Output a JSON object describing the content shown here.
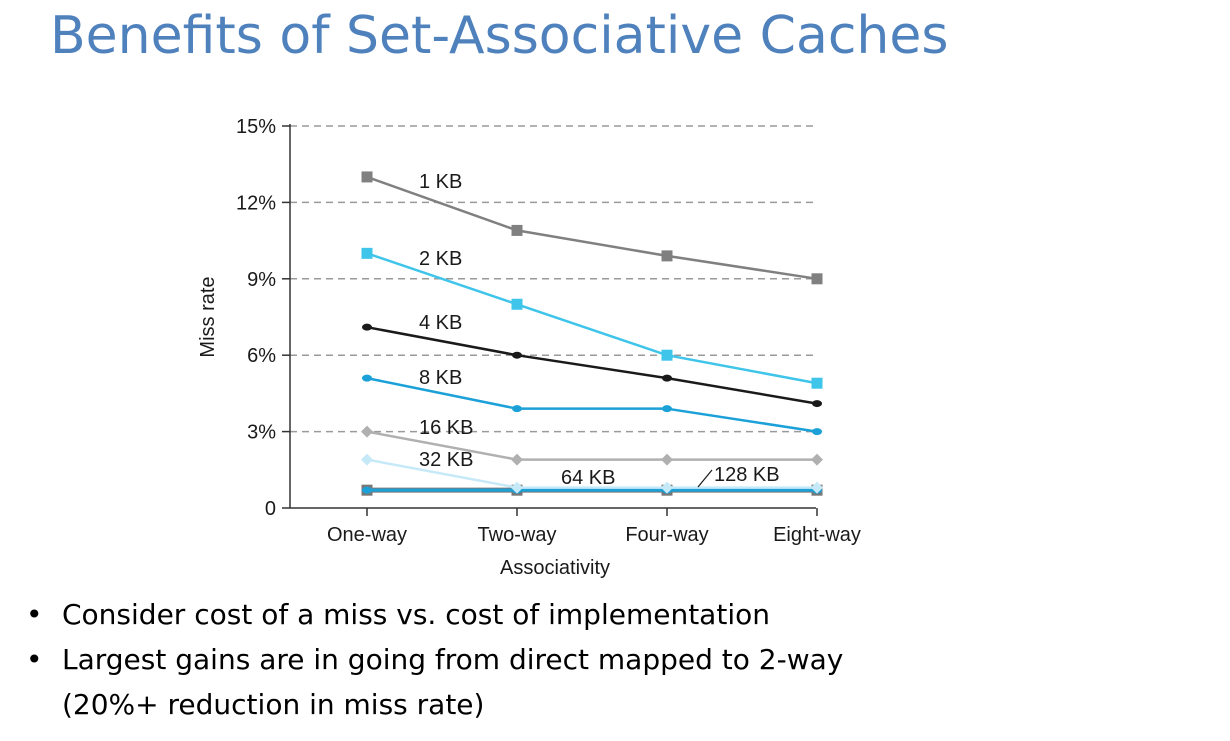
{
  "slide": {
    "title": "Benefits of Set-Associative Caches",
    "bullets": [
      {
        "lines": [
          "Consider cost of a miss vs. cost of implementation"
        ]
      },
      {
        "lines": [
          "Largest gains are in going from direct mapped to 2-way",
          "(20%+ reduction in miss rate)"
        ]
      }
    ],
    "bullet_glyph": "•"
  },
  "chart_data": {
    "type": "line",
    "title": "",
    "xlabel": "Associativity",
    "ylabel": "Miss rate",
    "categories": [
      "One-way",
      "Two-way",
      "Four-way",
      "Eight-way"
    ],
    "ylim": [
      0,
      15
    ],
    "yticks": [
      0,
      3,
      6,
      9,
      12,
      15
    ],
    "ytick_labels": [
      "0",
      "3%",
      "6%",
      "9%",
      "12%",
      "15%"
    ],
    "grid": "horizontal dashed",
    "series": [
      {
        "name": "1 KB",
        "values": [
          13.0,
          10.9,
          9.9,
          9.0
        ],
        "color": "#808080",
        "marker": "square"
      },
      {
        "name": "2 KB",
        "values": [
          10.0,
          8.0,
          6.0,
          4.9
        ],
        "color": "#3fc4ea",
        "marker": "square"
      },
      {
        "name": "4 KB",
        "values": [
          7.1,
          6.0,
          5.1,
          4.1
        ],
        "color": "#1a1a1a",
        "marker": "circle"
      },
      {
        "name": "8 KB",
        "values": [
          5.1,
          3.9,
          3.9,
          3.0
        ],
        "color": "#1ba1d8",
        "marker": "circle"
      },
      {
        "name": "16 KB",
        "values": [
          3.0,
          1.9,
          1.9,
          1.9
        ],
        "color": "#b0b0b0",
        "marker": "diamond"
      },
      {
        "name": "32 KB",
        "values": [
          1.9,
          0.8,
          0.8,
          0.8
        ],
        "color": "#c6e9f8",
        "marker": "diamond"
      },
      {
        "name": "64 KB",
        "values": [
          0.7,
          0.7,
          0.7,
          0.7
        ],
        "color": "#777777",
        "marker": "square"
      },
      {
        "name": "128 KB",
        "values": [
          0.7,
          0.7,
          0.7,
          0.7
        ],
        "color": "#1ba1d8",
        "marker": "circle"
      }
    ]
  }
}
